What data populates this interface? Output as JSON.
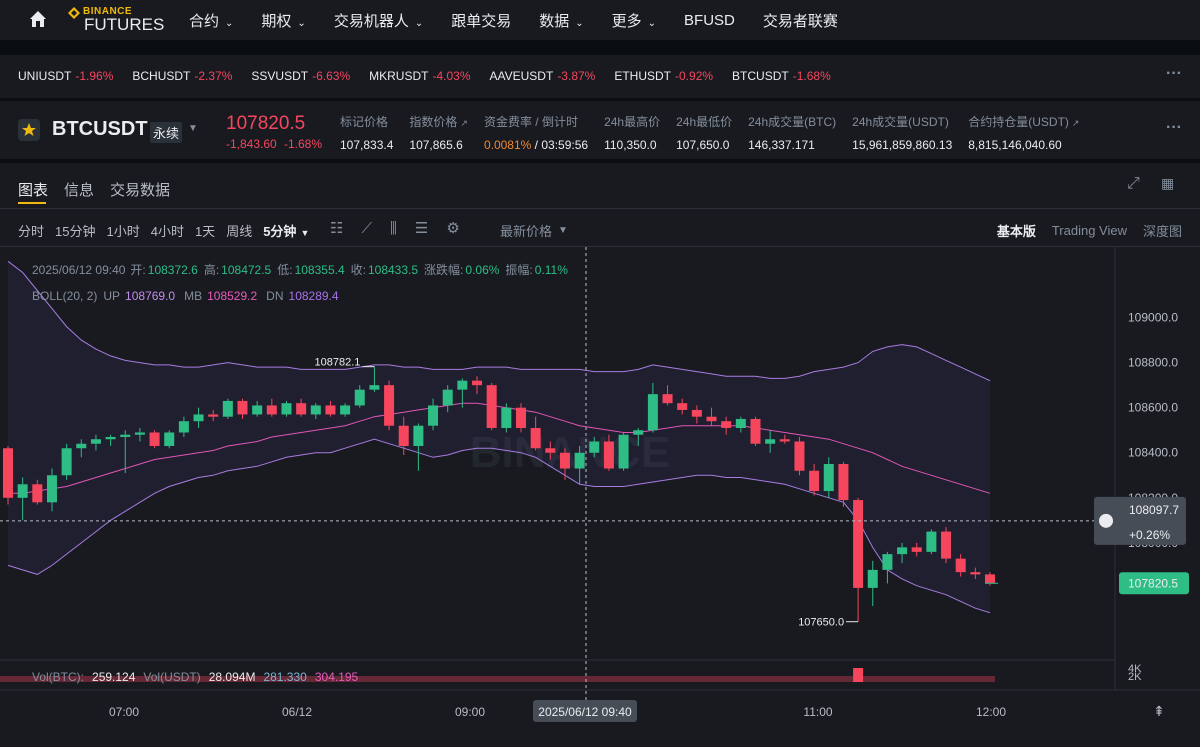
{
  "nav": {
    "logo_top": "BINANCE",
    "logo_bottom": "FUTURES",
    "items": [
      "合约",
      "期权",
      "交易机器人",
      "跟单交易",
      "数据",
      "更多",
      "BFUSD",
      "交易者联赛"
    ]
  },
  "tickers": [
    {
      "symbol": "UNIUSDT",
      "change": "-1.96%"
    },
    {
      "symbol": "BCHUSDT",
      "change": "-2.37%"
    },
    {
      "symbol": "SSVUSDT",
      "change": "-6.63%"
    },
    {
      "symbol": "MKRUSDT",
      "change": "-4.03%"
    },
    {
      "symbol": "AAVEUSDT",
      "change": "-3.87%"
    },
    {
      "symbol": "ETHUSDT",
      "change": "-0.92%"
    },
    {
      "symbol": "BTCUSDT",
      "change": "-1.68%"
    }
  ],
  "symbol_bar": {
    "symbol": "BTCUSDT",
    "contract": "永续",
    "price": "107820.5",
    "change": "-1,843.60",
    "change_pct": "-1.68%",
    "stats": [
      {
        "label": "标记价格",
        "value": "107,833.4"
      },
      {
        "label": "指数价格",
        "value": "107,865.6"
      },
      {
        "label": "资金费率 / 倒计时",
        "value": "0.0081%",
        "extra": "03:59:56"
      },
      {
        "label": "24h最高价",
        "value": "110,350.0"
      },
      {
        "label": "24h最低价",
        "value": "107,650.0"
      },
      {
        "label": "24h成交量(BTC)",
        "value": "146,337.171"
      },
      {
        "label": "24h成交量(USDT)",
        "value": "15,961,859,860.13"
      },
      {
        "label": "合约持仓量(USDT)",
        "value": "8,815,146,040.60"
      }
    ]
  },
  "panel": {
    "tabs": [
      "图表",
      "信息",
      "交易数据"
    ],
    "intervals": [
      "分时",
      "15分钟",
      "1小时",
      "4小时",
      "1天",
      "周线",
      "5分钟"
    ],
    "price_type": "最新价格",
    "views": [
      "基本版",
      "Trading View",
      "深度图"
    ],
    "ohlc_line": {
      "time": "2025/06/12 09:40",
      "items": [
        {
          "label": "开:",
          "value": "108372.6"
        },
        {
          "label": "高:",
          "value": "108472.5"
        },
        {
          "label": "低:",
          "value": "108355.4"
        },
        {
          "label": "收:",
          "value": "108433.5"
        },
        {
          "label": "涨跌幅:",
          "value": "0.06%"
        },
        {
          "label": "振幅:",
          "value": "0.11%"
        }
      ]
    },
    "boll_line": {
      "label": "BOLL(20, 2)",
      "items": [
        {
          "label": "UP",
          "value": "108769.0"
        },
        {
          "label": "MB",
          "value": "108529.2"
        },
        {
          "label": "DN",
          "value": "108289.4"
        }
      ]
    },
    "vol_line": {
      "items": [
        {
          "label": "Vol(BTC):",
          "value": "259.124"
        },
        {
          "label": "Vol(USDT)",
          "value": "28.094M"
        },
        {
          "label": "",
          "value": "281.330"
        },
        {
          "label": "",
          "value": "304.195"
        }
      ]
    },
    "vol_axis": [
      "4K",
      "2K"
    ]
  },
  "chart": {
    "type": "candlestick",
    "watermark": "BINANCE",
    "ylim": [
      107480,
      109300
    ],
    "yticks": [
      {
        "value": 109000,
        "label": "109000.0"
      },
      {
        "value": 108800,
        "label": "108800.0"
      },
      {
        "value": 108600,
        "label": "108600.0"
      },
      {
        "value": 108400,
        "label": "108400.0"
      },
      {
        "value": 108200,
        "label": "108200.0"
      },
      {
        "value": 108000,
        "label": "108000.0"
      }
    ],
    "xlabels": [
      "07:00",
      "06/12",
      "09:00",
      "11:00",
      "12:00"
    ],
    "max_label": "108782.1",
    "min_label": "107650.0",
    "crosshair": {
      "time": "2025/06/12 09:40",
      "price": 108097.7,
      "price_label": "108097.7",
      "change": "+0.26%"
    },
    "last_price": {
      "value": 107820.5,
      "label": "107820.5"
    },
    "candles": [
      [
        108420,
        108430,
        108170,
        108200
      ],
      [
        108200,
        108290,
        108100,
        108260
      ],
      [
        108260,
        108280,
        108170,
        108180
      ],
      [
        108180,
        108330,
        108140,
        108300
      ],
      [
        108300,
        108440,
        108280,
        108420
      ],
      [
        108420,
        108460,
        108380,
        108440
      ],
      [
        108440,
        108480,
        108410,
        108460
      ],
      [
        108460,
        108480,
        108430,
        108470
      ],
      [
        108470,
        108500,
        108310,
        108480
      ],
      [
        108480,
        108510,
        108450,
        108490
      ],
      [
        108490,
        108500,
        108420,
        108430
      ],
      [
        108430,
        108500,
        108420,
        108490
      ],
      [
        108490,
        108560,
        108470,
        108540
      ],
      [
        108540,
        108600,
        108510,
        108570
      ],
      [
        108570,
        108590,
        108540,
        108560
      ],
      [
        108560,
        108640,
        108550,
        108630
      ],
      [
        108630,
        108640,
        108550,
        108570
      ],
      [
        108570,
        108630,
        108560,
        108610
      ],
      [
        108610,
        108640,
        108560,
        108570
      ],
      [
        108570,
        108630,
        108560,
        108620
      ],
      [
        108620,
        108640,
        108560,
        108570
      ],
      [
        108570,
        108620,
        108550,
        108610
      ],
      [
        108610,
        108630,
        108560,
        108570
      ],
      [
        108570,
        108620,
        108560,
        108610
      ],
      [
        108610,
        108700,
        108600,
        108680
      ],
      [
        108680,
        108782.1,
        108670,
        108700
      ],
      [
        108700,
        108720,
        108500,
        108520
      ],
      [
        108520,
        108560,
        108390,
        108430
      ],
      [
        108430,
        108530,
        108320,
        108520
      ],
      [
        108520,
        108640,
        108500,
        108610
      ],
      [
        108610,
        108700,
        108580,
        108680
      ],
      [
        108680,
        108730,
        108600,
        108720
      ],
      [
        108720,
        108740,
        108660,
        108700
      ],
      [
        108700,
        108710,
        108500,
        108510
      ],
      [
        108510,
        108620,
        108490,
        108600
      ],
      [
        108600,
        108620,
        108490,
        108510
      ],
      [
        108510,
        108560,
        108410,
        108420
      ],
      [
        108420,
        108450,
        108370,
        108400
      ],
      [
        108400,
        108420,
        108280,
        108330
      ],
      [
        108330,
        108430,
        108260,
        108400
      ],
      [
        108400,
        108470,
        108380,
        108450
      ],
      [
        108450,
        108480,
        108320,
        108330
      ],
      [
        108330,
        108490,
        108320,
        108480
      ],
      [
        108480,
        108510,
        108430,
        108500
      ],
      [
        108500,
        108710,
        108490,
        108660
      ],
      [
        108660,
        108700,
        108610,
        108620
      ],
      [
        108620,
        108640,
        108570,
        108590
      ],
      [
        108590,
        108610,
        108530,
        108560
      ],
      [
        108560,
        108600,
        108520,
        108540
      ],
      [
        108540,
        108560,
        108480,
        108510
      ],
      [
        108510,
        108560,
        108490,
        108550
      ],
      [
        108550,
        108560,
        108430,
        108440
      ],
      [
        108440,
        108500,
        108400,
        108460
      ],
      [
        108460,
        108480,
        108440,
        108450
      ],
      [
        108450,
        108470,
        108300,
        108320
      ],
      [
        108320,
        108350,
        108210,
        108230
      ],
      [
        108230,
        108380,
        108200,
        108350
      ],
      [
        108350,
        108360,
        108160,
        108190
      ],
      [
        108190,
        108200,
        107650,
        107800
      ],
      [
        107800,
        107920,
        107720,
        107880
      ],
      [
        107880,
        107960,
        107820,
        107950
      ],
      [
        107950,
        108000,
        107910,
        107980
      ],
      [
        107980,
        108000,
        107940,
        107960
      ],
      [
        107960,
        108060,
        107950,
        108050
      ],
      [
        108050,
        108070,
        107910,
        107930
      ],
      [
        107930,
        107950,
        107850,
        107870
      ],
      [
        107870,
        107890,
        107840,
        107860
      ],
      [
        107860,
        107870,
        107810,
        107820
      ]
    ],
    "boll": {
      "up": [
        109250,
        109200,
        109120,
        109040,
        108960,
        108900,
        108860,
        108830,
        108810,
        108800,
        108790,
        108790,
        108780,
        108780,
        108790,
        108800,
        108790,
        108780,
        108780,
        108780,
        108770,
        108770,
        108770,
        108770,
        108780,
        108790,
        108790,
        108780,
        108780,
        108770,
        108770,
        108770,
        108780,
        108780,
        108780,
        108770,
        108770,
        108770,
        108770,
        108770,
        108760,
        108760,
        108760,
        108770,
        108790,
        108780,
        108770,
        108760,
        108750,
        108740,
        108740,
        108740,
        108730,
        108730,
        108740,
        108760,
        108770,
        108780,
        108800,
        108850,
        108870,
        108880,
        108870,
        108840,
        108810,
        108780,
        108750,
        108720
      ],
      "mb": [
        108220,
        108220,
        108230,
        108240,
        108250,
        108270,
        108290,
        108310,
        108330,
        108350,
        108370,
        108380,
        108390,
        108400,
        108410,
        108430,
        108440,
        108450,
        108470,
        108480,
        108490,
        108500,
        108510,
        108520,
        108540,
        108560,
        108570,
        108580,
        108590,
        108600,
        108610,
        108620,
        108620,
        108610,
        108600,
        108590,
        108580,
        108560,
        108540,
        108520,
        108510,
        108500,
        108490,
        108490,
        108500,
        108510,
        108520,
        108520,
        108520,
        108520,
        108520,
        108510,
        108500,
        108490,
        108480,
        108470,
        108460,
        108440,
        108420,
        108400,
        108370,
        108340,
        108320,
        108300,
        108280,
        108260,
        108240,
        108220
      ],
      "dn": [
        107900,
        107880,
        107860,
        107900,
        107950,
        108000,
        108050,
        108100,
        108140,
        108180,
        108220,
        108250,
        108270,
        108290,
        108300,
        108320,
        108330,
        108340,
        108360,
        108380,
        108390,
        108400,
        108400,
        108420,
        108440,
        108460,
        108440,
        108420,
        108400,
        108380,
        108390,
        108410,
        108420,
        108420,
        108410,
        108400,
        108380,
        108340,
        108300,
        108260,
        108250,
        108250,
        108250,
        108260,
        108270,
        108280,
        108290,
        108300,
        108300,
        108290,
        108290,
        108280,
        108270,
        108260,
        108240,
        108220,
        108200,
        108180,
        108100,
        107980,
        107880,
        107840,
        107810,
        107790,
        107770,
        107740,
        107710,
        107690
      ]
    }
  }
}
